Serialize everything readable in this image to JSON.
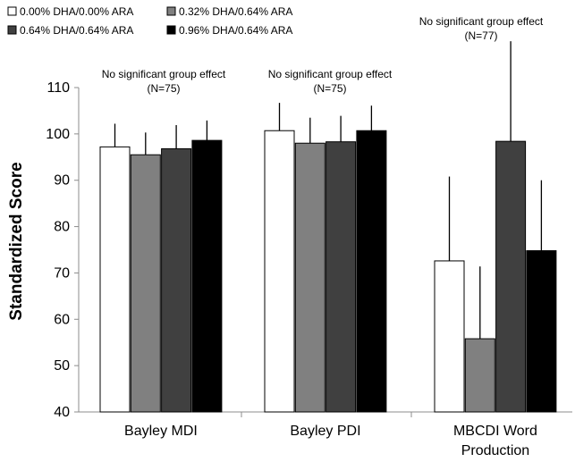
{
  "chart_data": {
    "type": "bar",
    "title": "",
    "xlabel": "",
    "ylabel": "Standardized Score",
    "ylim": [
      40,
      110
    ],
    "yticks": [
      40,
      50,
      60,
      70,
      80,
      90,
      100,
      110
    ],
    "grid": false,
    "legend_position": "top-left",
    "categories": [
      [
        "Bayley MDI"
      ],
      [
        "Bayley PDI"
      ],
      [
        "MBCDI Word",
        "Production"
      ]
    ],
    "series": [
      {
        "name": "0.00% DHA/0.00% ARA",
        "color": "#ffffff",
        "values": [
          97.2,
          100.7,
          72.6
        ],
        "errors": [
          5.0,
          6.0,
          18.2
        ]
      },
      {
        "name": "0.32% DHA/0.64% ARA",
        "color": "#808080",
        "values": [
          95.5,
          98.0,
          55.8
        ],
        "errors": [
          4.8,
          5.5,
          15.6
        ]
      },
      {
        "name": "0.64% DHA/0.64% ARA",
        "color": "#404040",
        "values": [
          96.8,
          98.3,
          98.4
        ],
        "errors": [
          5.1,
          5.6,
          21.6
        ]
      },
      {
        "name": "0.96% DHA/0.64% ARA",
        "color": "#000000",
        "values": [
          98.6,
          100.7,
          74.8
        ],
        "errors": [
          4.3,
          5.4,
          15.2
        ]
      }
    ],
    "annotations": [
      {
        "category": 0,
        "lines": [
          "No significant group effect",
          "(N=75)"
        ]
      },
      {
        "category": 1,
        "lines": [
          "No significant group effect",
          "(N=75)"
        ]
      },
      {
        "category": 2,
        "lines": [
          "No significant group effect",
          "(N=77)"
        ]
      }
    ]
  }
}
